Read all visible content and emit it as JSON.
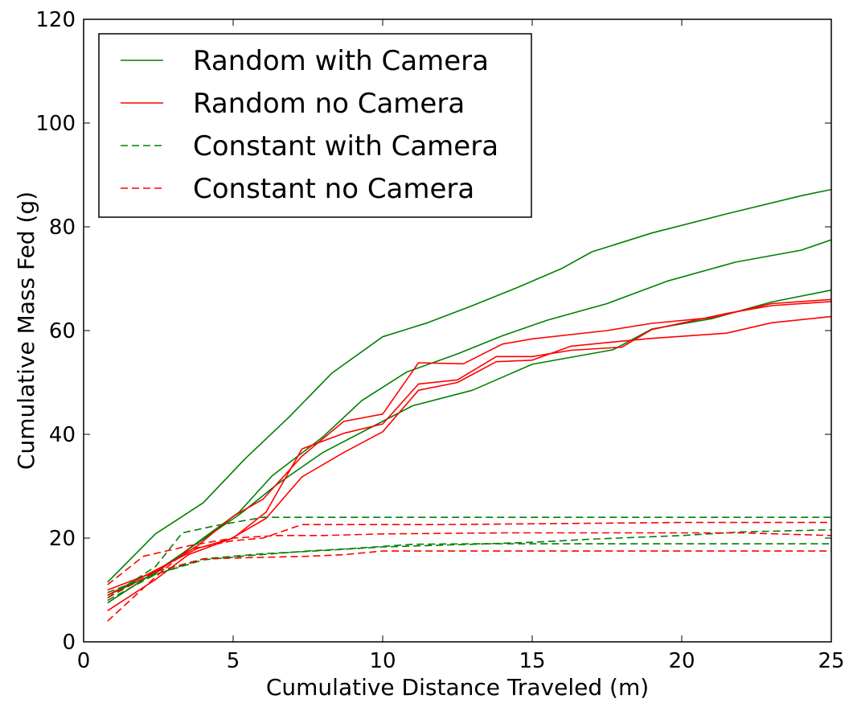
{
  "chart_data": {
    "type": "line",
    "title": "",
    "xlabel": "Cumulative Distance Traveled (m)",
    "ylabel": "Cumulative Mass Fed (g)",
    "xlim": [
      0,
      25
    ],
    "ylim": [
      0,
      120
    ],
    "xticks": [
      "0",
      "5",
      "10",
      "15",
      "20",
      "25"
    ],
    "yticks": [
      "0",
      "20",
      "40",
      "60",
      "80",
      "100",
      "120"
    ],
    "grid": false,
    "legend_position": "top-left",
    "legend": [
      {
        "label": "Random with Camera",
        "color": "#008000",
        "style": "solid"
      },
      {
        "label": "Random no Camera",
        "color": "#ff0000",
        "style": "solid"
      },
      {
        "label": "Constant with Camera",
        "color": "#008000",
        "style": "dashed"
      },
      {
        "label": "Constant no Camera",
        "color": "#ff0000",
        "style": "dashed"
      }
    ],
    "series": [
      {
        "group": "Random with Camera",
        "color": "#008000",
        "style": "solid",
        "points": [
          [
            0.8,
            11.5
          ],
          [
            2.4,
            20.8
          ],
          [
            4.0,
            26.8
          ],
          [
            5.4,
            35.3
          ],
          [
            6.9,
            43.5
          ],
          [
            8.3,
            51.8
          ],
          [
            10.0,
            58.8
          ],
          [
            11.5,
            61.5
          ],
          [
            13.0,
            64.8
          ],
          [
            14.5,
            68.3
          ],
          [
            16.0,
            72.0
          ],
          [
            17.0,
            75.2
          ],
          [
            19.0,
            78.8
          ],
          [
            21.5,
            82.5
          ],
          [
            24.0,
            86.0
          ],
          [
            25.0,
            87.2
          ]
        ]
      },
      {
        "group": "Random with Camera",
        "color": "#008000",
        "style": "solid",
        "points": [
          [
            0.8,
            9.0
          ],
          [
            2.4,
            13.2
          ],
          [
            4.0,
            20.0
          ],
          [
            5.2,
            25.0
          ],
          [
            6.3,
            32.0
          ],
          [
            8.0,
            39.5
          ],
          [
            9.3,
            46.5
          ],
          [
            10.8,
            52.0
          ],
          [
            12.5,
            55.5
          ],
          [
            14.0,
            59.0
          ],
          [
            15.5,
            62.0
          ],
          [
            17.5,
            65.2
          ],
          [
            19.5,
            69.5
          ],
          [
            21.8,
            73.2
          ],
          [
            24.0,
            75.5
          ],
          [
            25.0,
            77.5
          ]
        ]
      },
      {
        "group": "Random with Camera",
        "color": "#008000",
        "style": "solid",
        "points": [
          [
            0.8,
            7.5
          ],
          [
            2.4,
            13.5
          ],
          [
            4.0,
            19.8
          ],
          [
            5.2,
            24.5
          ],
          [
            6.5,
            30.5
          ],
          [
            8.0,
            36.5
          ],
          [
            9.5,
            41.0
          ],
          [
            11.0,
            45.5
          ],
          [
            13.0,
            48.5
          ],
          [
            15.0,
            53.5
          ],
          [
            17.7,
            56.3
          ],
          [
            19.0,
            60.3
          ],
          [
            21.0,
            62.3
          ],
          [
            23.0,
            65.5
          ],
          [
            25.0,
            67.8
          ]
        ]
      },
      {
        "group": "Random no Camera",
        "color": "#ff0000",
        "style": "solid",
        "points": [
          [
            0.8,
            10.0
          ],
          [
            2.4,
            13.5
          ],
          [
            3.8,
            18.5
          ],
          [
            5.0,
            24.2
          ],
          [
            6.0,
            27.5
          ],
          [
            7.3,
            35.8
          ],
          [
            8.7,
            42.5
          ],
          [
            10.0,
            43.9
          ],
          [
            11.2,
            53.8
          ],
          [
            12.7,
            53.6
          ],
          [
            14.0,
            57.4
          ],
          [
            15.0,
            58.4
          ],
          [
            17.5,
            60.0
          ],
          [
            19.0,
            61.4
          ],
          [
            21.0,
            62.5
          ],
          [
            23.0,
            65.2
          ],
          [
            25.0,
            66.0
          ]
        ]
      },
      {
        "group": "Random no Camera",
        "color": "#ff0000",
        "style": "solid",
        "points": [
          [
            0.8,
            9.0
          ],
          [
            2.4,
            13.8
          ],
          [
            3.8,
            18.0
          ],
          [
            5.0,
            20.0
          ],
          [
            6.1,
            25.0
          ],
          [
            7.3,
            37.2
          ],
          [
            8.7,
            40.2
          ],
          [
            10.0,
            42.0
          ],
          [
            11.2,
            49.7
          ],
          [
            12.5,
            50.5
          ],
          [
            13.8,
            55.0
          ],
          [
            15.0,
            55.0
          ],
          [
            16.3,
            56.2
          ],
          [
            18.0,
            56.8
          ],
          [
            19.0,
            60.2
          ],
          [
            21.5,
            63.3
          ],
          [
            23.0,
            64.8
          ],
          [
            25.0,
            65.6
          ]
        ]
      },
      {
        "group": "Random no Camera",
        "color": "#ff0000",
        "style": "solid",
        "points": [
          [
            0.8,
            6.0
          ],
          [
            2.4,
            12.0
          ],
          [
            3.5,
            16.8
          ],
          [
            4.9,
            19.8
          ],
          [
            6.1,
            23.8
          ],
          [
            7.3,
            31.8
          ],
          [
            8.7,
            36.5
          ],
          [
            10.0,
            40.5
          ],
          [
            11.2,
            48.5
          ],
          [
            12.5,
            50.0
          ],
          [
            13.8,
            54.0
          ],
          [
            15.0,
            54.3
          ],
          [
            16.3,
            57.0
          ],
          [
            17.7,
            57.8
          ],
          [
            19.0,
            58.5
          ],
          [
            21.5,
            59.5
          ],
          [
            23.0,
            61.5
          ],
          [
            25.0,
            62.7
          ]
        ]
      },
      {
        "group": "Constant with Camera",
        "color": "#008000",
        "style": "dashed",
        "points": [
          [
            0.8,
            8.5
          ],
          [
            2.4,
            14.5
          ],
          [
            3.3,
            21.0
          ],
          [
            4.5,
            22.5
          ],
          [
            6.0,
            24.0
          ],
          [
            8.0,
            24.0
          ],
          [
            12.0,
            24.0
          ],
          [
            16.0,
            24.0
          ],
          [
            20.0,
            24.0
          ],
          [
            25.0,
            24.0
          ]
        ]
      },
      {
        "group": "Constant with Camera",
        "color": "#008000",
        "style": "dashed",
        "points": [
          [
            0.8,
            9.5
          ],
          [
            2.4,
            13.0
          ],
          [
            4.0,
            15.8
          ],
          [
            5.5,
            16.6
          ],
          [
            7.5,
            17.5
          ],
          [
            9.0,
            18.0
          ],
          [
            11.0,
            18.8
          ],
          [
            13.0,
            18.9
          ],
          [
            15.0,
            18.9
          ],
          [
            25.0,
            18.9
          ]
        ]
      },
      {
        "group": "Constant with Camera",
        "color": "#008000",
        "style": "dashed",
        "points": [
          [
            0.8,
            8.0
          ],
          [
            2.4,
            13.0
          ],
          [
            4.0,
            16.0
          ],
          [
            6.0,
            17.0
          ],
          [
            8.0,
            17.6
          ],
          [
            10.0,
            18.3
          ],
          [
            13.0,
            18.8
          ],
          [
            15.0,
            19.2
          ],
          [
            17.0,
            19.8
          ],
          [
            20.0,
            20.5
          ],
          [
            22.0,
            21.2
          ],
          [
            25.0,
            21.6
          ]
        ]
      },
      {
        "group": "Constant no Camera",
        "color": "#ff0000",
        "style": "dashed",
        "points": [
          [
            0.8,
            4.0
          ],
          [
            2.4,
            12.5
          ],
          [
            3.5,
            17.8
          ],
          [
            5.0,
            19.5
          ],
          [
            6.0,
            20.0
          ],
          [
            7.3,
            22.6
          ],
          [
            9.0,
            22.6
          ],
          [
            12.0,
            22.6
          ],
          [
            16.0,
            22.8
          ],
          [
            20.0,
            23.0
          ],
          [
            25.0,
            23.0
          ]
        ]
      },
      {
        "group": "Constant no Camera",
        "color": "#ff0000",
        "style": "dashed",
        "points": [
          [
            0.8,
            11.0
          ],
          [
            2.0,
            16.5
          ],
          [
            3.5,
            18.5
          ],
          [
            5.0,
            20.0
          ],
          [
            6.5,
            20.5
          ],
          [
            8.0,
            20.5
          ],
          [
            10.0,
            20.8
          ],
          [
            14.0,
            21.0
          ],
          [
            18.0,
            21.0
          ],
          [
            22.0,
            21.0
          ],
          [
            25.0,
            20.5
          ]
        ]
      },
      {
        "group": "Constant no Camera",
        "color": "#ff0000",
        "style": "dashed",
        "points": [
          [
            0.8,
            8.5
          ],
          [
            2.4,
            13.5
          ],
          [
            4.0,
            16.0
          ],
          [
            6.0,
            16.3
          ],
          [
            7.5,
            16.5
          ],
          [
            8.7,
            16.8
          ],
          [
            10.0,
            17.5
          ],
          [
            15.0,
            17.5
          ],
          [
            20.0,
            17.5
          ],
          [
            25.0,
            17.5
          ]
        ]
      }
    ]
  }
}
